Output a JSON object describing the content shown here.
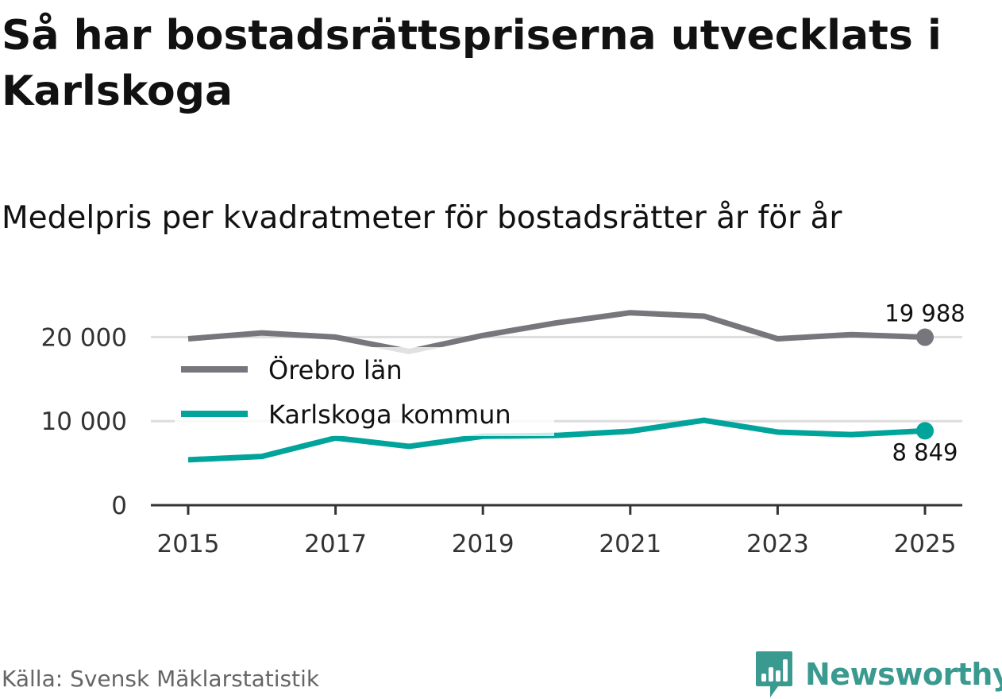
{
  "title": "Så har bostadsrättspriserna utvecklats i Karlskoga",
  "subtitle": "Medelpris per kvadratmeter för bostadsrätter år för år",
  "source": "Källa: Svensk Mäklarstatistik",
  "brand": {
    "name": "Newsworthy",
    "icon": "bar-chart-speech-bubble-icon",
    "color": "#3b9a8f"
  },
  "chart_data": {
    "type": "line",
    "x": [
      2015,
      2016,
      2017,
      2018,
      2019,
      2020,
      2021,
      2022,
      2023,
      2024,
      2025
    ],
    "x_ticks": [
      "2015",
      "2017",
      "2019",
      "2021",
      "2023",
      "2025"
    ],
    "y_ticks": [
      "0",
      "10 000",
      "20 000"
    ],
    "ylim": [
      0,
      23000
    ],
    "grid": true,
    "legend_placement": "inside-left",
    "series": [
      {
        "name": "Örebro län",
        "color": "#76767c",
        "values": [
          19800,
          20500,
          20000,
          18300,
          20200,
          21700,
          22900,
          22500,
          19800,
          20300,
          19988
        ],
        "end_label": "19 988"
      },
      {
        "name": "Karlskoga kommun",
        "color": "#00a49a",
        "values": [
          5400,
          5800,
          8000,
          7000,
          8200,
          8300,
          8800,
          10100,
          8700,
          8400,
          8849
        ],
        "end_label": "8 849"
      }
    ]
  }
}
